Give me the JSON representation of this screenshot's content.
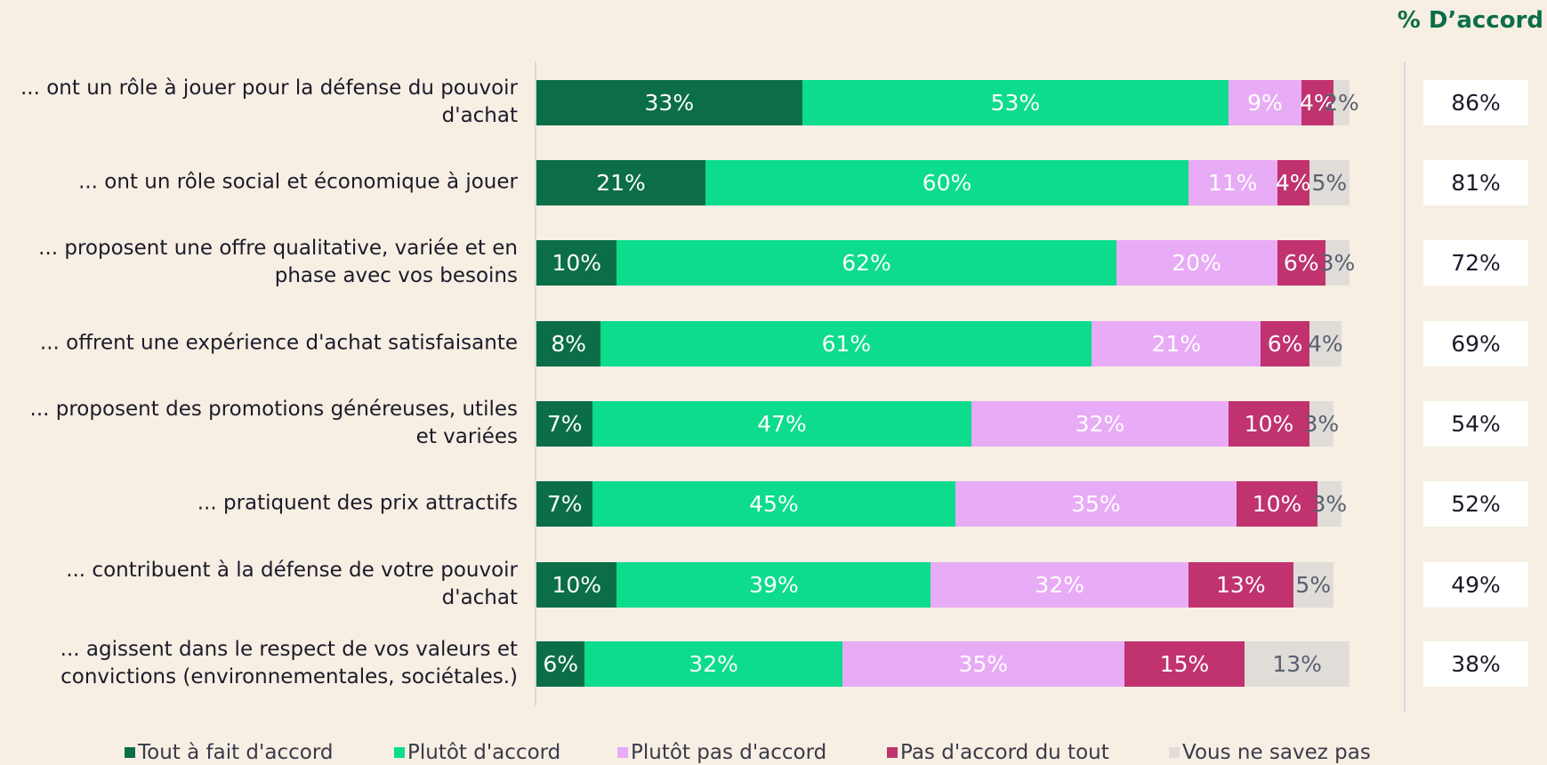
{
  "chart_data": {
    "type": "stacked-bar-horizontal",
    "categories": [
      "... ont un rôle à jouer pour la défense du pouvoir d'achat",
      "... ont un rôle social et économique à jouer",
      "... proposent une offre qualitative, variée et en phase avec vos besoins",
      "... offrent une expérience d'achat satisfaisante",
      "... proposent des promotions généreuses, utiles et variées",
      "... pratiquent des prix attractifs",
      "... contribuent à la défense de votre pouvoir d'achat",
      "... agissent dans le respect de vos valeurs et convictions (environnementales, sociétales.)"
    ],
    "series": [
      {
        "name": "Tout à fait d'accord",
        "color": "#0b6e48",
        "text_color": "#ffffff",
        "values": [
          33,
          21,
          10,
          8,
          7,
          7,
          10,
          6
        ],
        "value_labels": [
          "33%",
          "21%",
          "10%",
          "8%",
          "7%",
          "7%",
          "10%",
          "6%"
        ]
      },
      {
        "name": "Plutôt d'accord",
        "color": "#0cdc8c",
        "text_color": "#ffffff",
        "values": [
          53,
          60,
          62,
          61,
          47,
          45,
          39,
          32
        ],
        "value_labels": [
          "53%",
          "60%",
          "62%",
          "61%",
          "47%",
          "45%",
          "39%",
          "32%"
        ]
      },
      {
        "name": "Plutôt pas d'accord",
        "color": "#e8abf5",
        "text_color": "#ffffff",
        "values": [
          9,
          11,
          20,
          21,
          32,
          35,
          32,
          35
        ],
        "value_labels": [
          "9%",
          "11%",
          "20%",
          "21%",
          "32%",
          "35%",
          "32%",
          "35%"
        ]
      },
      {
        "name": "Pas d'accord du tout",
        "color": "#c0336f",
        "text_color": "#ffffff",
        "values": [
          4,
          4,
          6,
          6,
          10,
          10,
          13,
          15
        ],
        "value_labels": [
          "4%",
          "4%",
          "6%",
          "6%",
          "10%",
          "10%",
          "13%",
          "15%"
        ]
      },
      {
        "name": "Vous ne savez pas",
        "color": "#e0dcd8",
        "text_color": "#5a6070",
        "values": [
          2,
          5,
          3,
          4,
          3,
          3,
          5,
          13
        ],
        "value_labels": [
          "2%",
          "5%",
          "3%",
          "4%",
          "3%",
          "3%",
          "5%",
          "13%"
        ]
      }
    ],
    "xlim": [
      0,
      101
    ],
    "agree_title": "% D’accord",
    "agree_values": [
      86,
      81,
      72,
      69,
      54,
      52,
      49,
      38
    ],
    "agree_labels": [
      "86%",
      "81%",
      "72%",
      "69%",
      "54%",
      "52%",
      "49%",
      "38%"
    ]
  }
}
